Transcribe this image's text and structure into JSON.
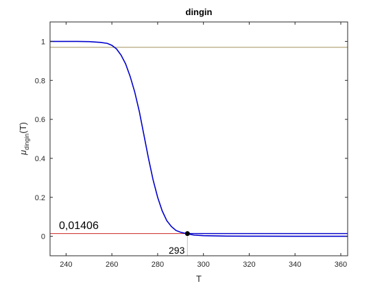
{
  "chart_data": {
    "type": "line",
    "title": "dingin",
    "xlabel": "T",
    "ylabel": {
      "symbol": "μ",
      "subscript": "dingin",
      "suffix": "(T)"
    },
    "xlim": [
      233,
      363
    ],
    "ylim": [
      -0.1,
      1.1
    ],
    "xticks": [
      240,
      260,
      280,
      300,
      320,
      340,
      360
    ],
    "yticks": [
      0,
      0.2,
      0.4,
      0.6,
      0.8,
      1
    ],
    "ytick_labels": [
      "0",
      "0.2",
      "0.4",
      "0.6",
      "0.8",
      "1"
    ],
    "grid": false,
    "curve": {
      "color": "#0000cc",
      "x": [
        233,
        240,
        245,
        250,
        255,
        258,
        260,
        262,
        264,
        266,
        268,
        270,
        272,
        274,
        276,
        278,
        280,
        282,
        284,
        286,
        288,
        290,
        292,
        293,
        294,
        296,
        300,
        310,
        320,
        340,
        363
      ],
      "y": [
        1.0,
        1.0,
        1.0,
        0.999,
        0.995,
        0.99,
        0.98,
        0.962,
        0.93,
        0.885,
        0.82,
        0.74,
        0.64,
        0.52,
        0.4,
        0.29,
        0.2,
        0.13,
        0.08,
        0.05,
        0.03,
        0.021,
        0.015,
        0.014,
        0.01,
        0.006,
        0.003,
        0.001,
        0.0005,
        0.0002,
        0.0001
      ]
    },
    "secondary_line": {
      "color": "#0000cc",
      "x": [
        293,
        363
      ],
      "y": [
        0.014,
        0.014
      ]
    },
    "reference_lines": [
      {
        "y": 0.97,
        "color": "#a08c5a"
      },
      {
        "y": 0.01406,
        "color": "#cc2222"
      }
    ],
    "marker": {
      "x": 293,
      "y": 0.01406,
      "color": "#000000"
    },
    "annotations": {
      "y_value_label": "0,01406",
      "x_value_label": "293"
    }
  }
}
